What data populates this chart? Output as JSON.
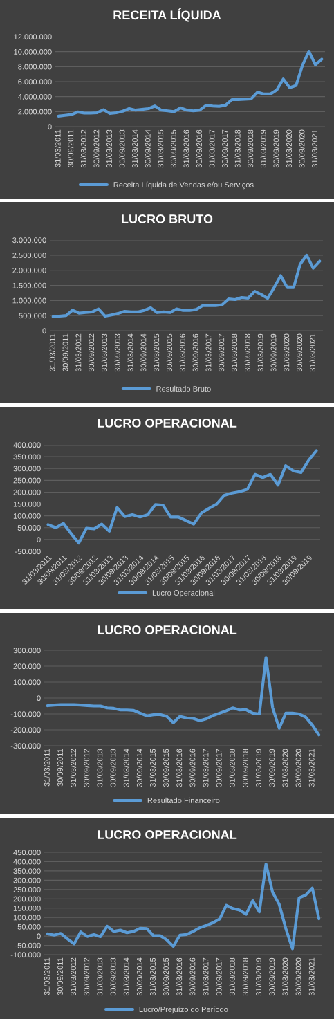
{
  "chart_data": [
    {
      "type": "line",
      "title": "RECEITA LÍQUIDA",
      "categories": [
        "31/03/2011",
        null,
        "30/09/2011",
        null,
        "31/03/2012",
        null,
        "30/09/2012",
        null,
        "31/03/2013",
        null,
        "30/09/2013",
        null,
        "31/03/2014",
        null,
        "30/09/2014",
        null,
        "31/03/2015",
        null,
        "30/09/2015",
        null,
        "31/03/2016",
        null,
        "30/09/2016",
        null,
        "31/03/2017",
        null,
        "30/09/2017",
        null,
        "31/03/2018",
        null,
        "30/09/2018",
        null,
        "31/03/2019",
        null,
        "30/09/2019",
        null,
        "31/03/2020",
        null,
        "30/09/2020",
        null,
        "31/03/2021",
        null
      ],
      "series": [
        {
          "name": "Receita Líquida de Vendas e/ou Serviços",
          "color": "#5b9bd5",
          "values": [
            1400000,
            1500000,
            1600000,
            1950000,
            1800000,
            1800000,
            1850000,
            2250000,
            1750000,
            1850000,
            2050000,
            2400000,
            2200000,
            2300000,
            2400000,
            2750000,
            2200000,
            2100000,
            2000000,
            2500000,
            2200000,
            2100000,
            2200000,
            2850000,
            2750000,
            2700000,
            2850000,
            3600000,
            3600000,
            3650000,
            3700000,
            4600000,
            4350000,
            4350000,
            4900000,
            6350000,
            5200000,
            5500000,
            8200000,
            10050000,
            8250000,
            9000000
          ]
        }
      ],
      "ylim": [
        0,
        12000000
      ],
      "yticks": [
        0,
        {
          "value": 2000000,
          "label": "2.000.000"
        },
        {
          "value": 4000000,
          "label": "4.000.000"
        },
        {
          "value": 6000000,
          "label": "6.000.000"
        },
        {
          "value": 8000000,
          "label": "8.000.000"
        },
        {
          "value": 10000000,
          "label": "10.000.000"
        },
        {
          "value": 12000000,
          "label": "12.000.000"
        }
      ],
      "grid": "y",
      "legend": "bottom",
      "marker": "none",
      "line_style": "solid"
    },
    {
      "type": "line",
      "title": "LUCRO BRUTO",
      "categories": [
        "31/03/2011",
        null,
        "30/09/2011",
        null,
        "31/03/2012",
        null,
        "30/09/2012",
        null,
        "31/03/2013",
        null,
        "30/09/2013",
        null,
        "31/03/2014",
        null,
        "30/09/2014",
        null,
        "31/03/2015",
        null,
        "30/09/2015",
        null,
        "31/03/2016",
        null,
        "30/09/2016",
        null,
        "31/03/2017",
        null,
        "30/09/2017",
        null,
        "31/03/2018",
        null,
        "30/09/2018",
        null,
        "31/03/2019",
        null,
        "30/09/2019",
        null,
        "31/03/2020",
        null,
        "30/09/2020",
        null,
        "31/03/2021",
        null
      ],
      "series": [
        {
          "name": "Resultado Bruto",
          "color": "#5b9bd5",
          "values": [
            460000,
            480000,
            500000,
            680000,
            580000,
            600000,
            620000,
            720000,
            480000,
            520000,
            570000,
            640000,
            620000,
            620000,
            670000,
            760000,
            600000,
            620000,
            600000,
            720000,
            670000,
            670000,
            700000,
            830000,
            830000,
            830000,
            860000,
            1050000,
            1030000,
            1100000,
            1080000,
            1300000,
            1200000,
            1070000,
            1430000,
            1820000,
            1430000,
            1430000,
            2200000,
            2500000,
            2070000,
            2300000
          ]
        }
      ],
      "ylim": [
        0,
        3000000
      ],
      "yticks": [
        0,
        {
          "value": 500000,
          "label": "500.000"
        },
        {
          "value": 1000000,
          "label": "1.000.000"
        },
        {
          "value": 1500000,
          "label": "1.500.000"
        },
        {
          "value": 2000000,
          "label": "2.000.000"
        },
        {
          "value": 2500000,
          "label": "2.500.000"
        },
        {
          "value": 3000000,
          "label": "3.000.000"
        }
      ],
      "grid": "y",
      "legend": "bottom",
      "marker": "none",
      "line_style": "solid"
    },
    {
      "type": "line",
      "title": "LUCRO OPERACIONAL",
      "categories": [
        "31/03/2011",
        null,
        "30/09/2011",
        null,
        "31/03/2012",
        null,
        "30/09/2012",
        null,
        "31/03/2013",
        null,
        "30/09/2013",
        null,
        "31/03/2014",
        null,
        "30/09/2014",
        null,
        "31/03/2015",
        null,
        "30/09/2015",
        null,
        "31/03/2016",
        null,
        "30/09/2016",
        null,
        "31/03/2017",
        null,
        "30/09/2017",
        null,
        "31/03/2018",
        null,
        "30/09/2018",
        null,
        "31/03/2019",
        null,
        "30/09/2019",
        null
      ],
      "series": [
        {
          "name": "Lucro Operacional",
          "color": "#5b9bd5",
          "values": [
            63000,
            50000,
            68000,
            25000,
            -15000,
            48000,
            45000,
            65000,
            35000,
            135000,
            97000,
            105000,
            95000,
            105000,
            148000,
            145000,
            95000,
            95000,
            80000,
            65000,
            112000,
            132000,
            150000,
            187000,
            196000,
            202000,
            212000,
            275000,
            262000,
            275000,
            230000,
            312000,
            290000,
            283000,
            335000,
            375000
          ]
        }
      ],
      "ylim": [
        -50000,
        400000
      ],
      "yticks": [
        {
          "value": -50000,
          "label": "-50.000"
        },
        0,
        {
          "value": 50000,
          "label": "50.000"
        },
        {
          "value": 100000,
          "label": "100.000"
        },
        {
          "value": 150000,
          "label": "150.000"
        },
        {
          "value": 200000,
          "label": "200.000"
        },
        {
          "value": 250000,
          "label": "250.000"
        },
        {
          "value": 300000,
          "label": "300.000"
        },
        {
          "value": 350000,
          "label": "350.000"
        },
        {
          "value": 400000,
          "label": "400.000"
        }
      ],
      "grid": "y",
      "legend": "bottom",
      "marker": "none",
      "line_style": "solid"
    },
    {
      "type": "line",
      "title": "LUCRO OPERACIONAL",
      "categories": [
        "31/03/2011",
        null,
        "30/09/2011",
        null,
        "31/03/2012",
        null,
        "30/09/2012",
        null,
        "31/03/2013",
        null,
        "30/09/2013",
        null,
        "31/03/2014",
        null,
        "30/09/2014",
        null,
        "31/03/2015",
        null,
        "30/09/2015",
        null,
        "31/03/2016",
        null,
        "30/09/2016",
        null,
        "31/03/2017",
        null,
        "30/09/2017",
        null,
        "31/03/2018",
        null,
        "30/09/2018",
        null,
        "31/03/2019",
        null,
        "30/09/2019",
        null,
        "31/03/2020",
        null,
        "30/09/2020",
        null,
        "31/03/2021",
        null
      ],
      "series": [
        {
          "name": "Resultado Financeiro",
          "color": "#5b9bd5",
          "values": [
            -48000,
            -44000,
            -42000,
            -42000,
            -42000,
            -44000,
            -47000,
            -50000,
            -50000,
            -62000,
            -65000,
            -75000,
            -75000,
            -78000,
            -95000,
            -112000,
            -105000,
            -103000,
            -115000,
            -155000,
            -115000,
            -125000,
            -128000,
            -142000,
            -130000,
            -110000,
            -95000,
            -80000,
            -62000,
            -75000,
            -73000,
            -95000,
            -100000,
            255000,
            -60000,
            -190000,
            -95000,
            -95000,
            -100000,
            -120000,
            -170000,
            -232000
          ]
        }
      ],
      "ylim": [
        -300000,
        300000
      ],
      "yticks": [
        {
          "value": -300000,
          "label": "-300.000"
        },
        {
          "value": -200000,
          "label": "-200.000"
        },
        {
          "value": -100000,
          "label": "-100.000"
        },
        0,
        {
          "value": 100000,
          "label": "100.000"
        },
        {
          "value": 200000,
          "label": "200.000"
        },
        {
          "value": 300000,
          "label": "300.000"
        }
      ],
      "grid": "y",
      "legend": "bottom",
      "marker": "none",
      "line_style": "solid"
    },
    {
      "type": "line",
      "title": "LUCRO OPERACIONAL",
      "categories": [
        "31/03/2011",
        null,
        "30/09/2011",
        null,
        "31/03/2012",
        null,
        "30/09/2012",
        null,
        "31/03/2013",
        null,
        "30/09/2013",
        null,
        "31/03/2014",
        null,
        "30/09/2014",
        null,
        "31/03/2015",
        null,
        "30/09/2015",
        null,
        "31/03/2016",
        null,
        "30/09/2016",
        null,
        "31/03/2017",
        null,
        "30/09/2017",
        null,
        "31/03/2018",
        null,
        "30/09/2018",
        null,
        "31/03/2019",
        null,
        "30/09/2019",
        null,
        "31/03/2020",
        null,
        "30/09/2020",
        null,
        "31/03/2021",
        null
      ],
      "series": [
        {
          "name": "Lucro/Prejuízo do Período",
          "color": "#5b9bd5",
          "values": [
            12000,
            5000,
            14000,
            -15000,
            -42000,
            22000,
            -2000,
            8000,
            -3000,
            53000,
            25000,
            32000,
            18000,
            25000,
            42000,
            40000,
            2000,
            2000,
            -20000,
            -55000,
            5000,
            8000,
            25000,
            45000,
            57000,
            72000,
            92000,
            165000,
            148000,
            140000,
            117000,
            190000,
            130000,
            387000,
            235000,
            170000,
            40000,
            -68000,
            205000,
            220000,
            258000,
            93000
          ]
        }
      ],
      "ylim": [
        -100000,
        450000
      ],
      "yticks": [
        {
          "value": -100000,
          "label": "-100.000"
        },
        {
          "value": -50000,
          "label": "-50.000"
        },
        0,
        {
          "value": 50000,
          "label": "50.000"
        },
        {
          "value": 100000,
          "label": "100.000"
        },
        {
          "value": 150000,
          "label": "150.000"
        },
        {
          "value": 200000,
          "label": "200.000"
        },
        {
          "value": 250000,
          "label": "250.000"
        },
        {
          "value": 300000,
          "label": "300.000"
        },
        {
          "value": 350000,
          "label": "350.000"
        },
        {
          "value": 400000,
          "label": "400.000"
        },
        {
          "value": 450000,
          "label": "450.000"
        }
      ],
      "grid": "y",
      "legend": "bottom",
      "marker": "none",
      "line_style": "solid"
    }
  ]
}
